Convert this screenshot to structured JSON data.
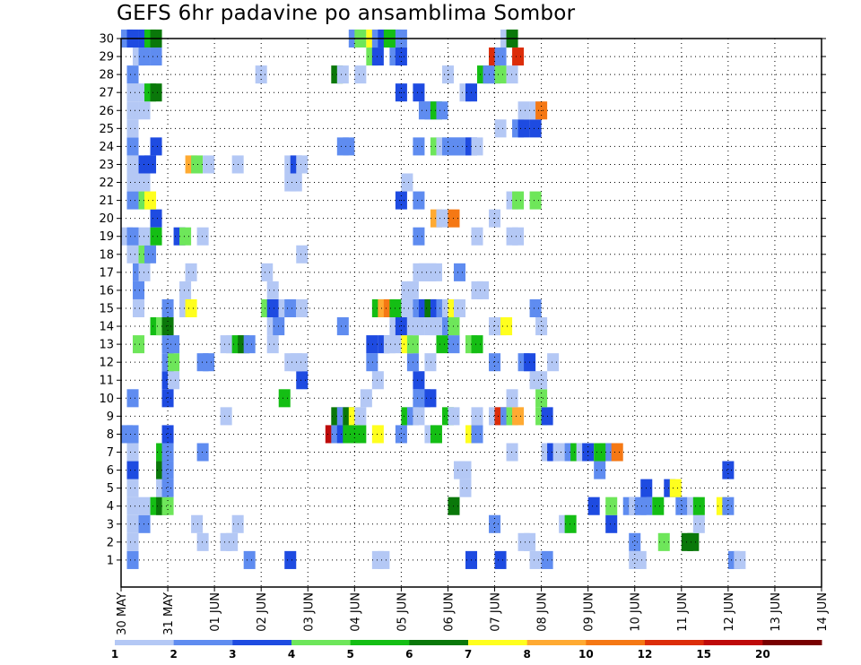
{
  "chart_data": {
    "type": "heatmap",
    "title": "GEFS 6hr padavine po ansamblima Sombor",
    "y_labels": [
      "1",
      "2",
      "3",
      "4",
      "5",
      "6",
      "7",
      "8",
      "9",
      "10",
      "11",
      "12",
      "13",
      "14",
      "15",
      "16",
      "17",
      "18",
      "19",
      "20",
      "21",
      "22",
      "23",
      "24",
      "25",
      "26",
      "27",
      "28",
      "29",
      "30"
    ],
    "x_labels": [
      "30 MAY",
      "31 MAY",
      "01 JUN",
      "02 JUN",
      "03 JUN",
      "04 JUN",
      "05 JUN",
      "06 JUN",
      "07 JUN",
      "08 JUN",
      "09 JUN",
      "10 JUN",
      "11 JUN",
      "12 JUN",
      "13 JUN",
      "14 JUN"
    ],
    "time_steps": 60,
    "grid": "dotted",
    "colorbar": {
      "labels": [
        "1",
        "2",
        "3",
        "4",
        "5",
        "6",
        "7",
        "8",
        "10",
        "12",
        "15",
        "20"
      ],
      "colors": [
        "#b4c8f5",
        "#5f8cf0",
        "#1e4be1",
        "#6ee65a",
        "#14be14",
        "#0a780a",
        "#ffff1e",
        "#ffaa32",
        "#f57814",
        "#dc2d0a",
        "#be0a0a",
        "#780000"
      ]
    },
    "rows": {
      "1": [
        [
          24,
          "c2"
        ],
        [
          44,
          "c2"
        ],
        [
          51,
          "c3"
        ],
        [
          66,
          "c1"
        ],
        [
          67,
          "c1"
        ],
        [
          82,
          "c3"
        ],
        [
          87,
          "c3"
        ],
        [
          93,
          "c1"
        ],
        [
          95,
          "c2"
        ],
        [
          110,
          "c1"
        ],
        [
          111,
          "c1"
        ],
        [
          127,
          "c2"
        ],
        [
          128,
          "c1"
        ]
      ],
      "2": [
        [
          24,
          "c1"
        ],
        [
          36,
          "c1"
        ],
        [
          40,
          "c1"
        ],
        [
          41,
          "c1"
        ],
        [
          91,
          "c1"
        ],
        [
          92,
          "c1"
        ],
        [
          110,
          "c2"
        ],
        [
          115,
          "c4"
        ],
        [
          119,
          "c6"
        ],
        [
          120,
          "c6"
        ]
      ],
      "3": [
        [
          24,
          "c1"
        ],
        [
          26,
          "c2"
        ],
        [
          35,
          "c1"
        ],
        [
          42,
          "c1"
        ],
        [
          86,
          "c2"
        ],
        [
          98,
          "c1"
        ],
        [
          99,
          "c5"
        ],
        [
          106,
          "c3"
        ],
        [
          121,
          "c1"
        ]
      ],
      "4": [
        [
          24,
          "c1"
        ],
        [
          26,
          "c1"
        ],
        [
          28,
          "c5"
        ],
        [
          29,
          "c6"
        ],
        [
          30,
          "c4"
        ],
        [
          79,
          "c6"
        ],
        [
          103,
          "c3"
        ],
        [
          106,
          "c4"
        ],
        [
          109,
          "c2"
        ],
        [
          110,
          "c1"
        ],
        [
          111,
          "c2"
        ],
        [
          112,
          "c2"
        ],
        [
          114,
          "c5"
        ],
        [
          118,
          "c2"
        ],
        [
          120,
          "c1"
        ],
        [
          121,
          "c5"
        ],
        [
          125,
          "c7"
        ],
        [
          126,
          "c2"
        ]
      ],
      "5": [
        [
          24,
          "c1"
        ],
        [
          29,
          "c1"
        ],
        [
          30,
          "c2"
        ],
        [
          81,
          "c1"
        ],
        [
          112,
          "c3"
        ],
        [
          116,
          "c3"
        ],
        [
          117,
          "c7"
        ]
      ],
      "6": [
        [
          24,
          "c3"
        ],
        [
          29,
          "c6"
        ],
        [
          30,
          "c2"
        ],
        [
          80,
          "c1"
        ],
        [
          81,
          "c1"
        ],
        [
          104,
          "c2"
        ],
        [
          126,
          "c3"
        ]
      ],
      "7": [
        [
          24,
          "c1"
        ],
        [
          29,
          "c5"
        ],
        [
          30,
          "c2"
        ],
        [
          36,
          "c2"
        ],
        [
          89,
          "c1"
        ],
        [
          95,
          "c1"
        ],
        [
          96,
          "c3"
        ],
        [
          97,
          "c1"
        ],
        [
          98,
          "c1"
        ],
        [
          99,
          "c2"
        ],
        [
          100,
          "c5"
        ],
        [
          101,
          "c1"
        ],
        [
          102,
          "c3"
        ],
        [
          104,
          "c5"
        ],
        [
          105,
          "c5"
        ],
        [
          106,
          "c2"
        ],
        [
          107,
          "c9"
        ]
      ],
      "8": [
        [
          23,
          "c2"
        ],
        [
          24,
          "c2"
        ],
        [
          30,
          "c3"
        ],
        [
          58,
          "c11"
        ],
        [
          59,
          "c2"
        ],
        [
          60,
          "c3"
        ],
        [
          61,
          "c5"
        ],
        [
          62,
          "c5"
        ],
        [
          63,
          "c5"
        ],
        [
          66,
          "c7"
        ],
        [
          70,
          "c2"
        ],
        [
          75,
          "c1"
        ],
        [
          76,
          "c5"
        ],
        [
          82,
          "c7"
        ],
        [
          83,
          "c2"
        ]
      ],
      "9": [
        [
          40,
          "c1"
        ],
        [
          59,
          "c6"
        ],
        [
          60,
          "c2"
        ],
        [
          61,
          "c6"
        ],
        [
          62,
          "c7"
        ],
        [
          63,
          "c1"
        ],
        [
          71,
          "c5"
        ],
        [
          72,
          "c2"
        ],
        [
          73,
          "c1"
        ],
        [
          78,
          "c5"
        ],
        [
          79,
          "c1"
        ],
        [
          83,
          "c1"
        ],
        [
          86,
          "c1"
        ],
        [
          87,
          "c10"
        ],
        [
          88,
          "c2"
        ],
        [
          89,
          "c4"
        ],
        [
          90,
          "c8"
        ],
        [
          94,
          "c4"
        ],
        [
          95,
          "c3"
        ]
      ],
      "10": [
        [
          24,
          "c2"
        ],
        [
          30,
          "c3"
        ],
        [
          50,
          "c5"
        ],
        [
          64,
          "c1"
        ],
        [
          73,
          "c2"
        ],
        [
          74,
          "c2"
        ],
        [
          75,
          "c3"
        ],
        [
          89,
          "c1"
        ],
        [
          94,
          "c4"
        ]
      ],
      "11": [
        [
          30,
          "c3"
        ],
        [
          31,
          "c1"
        ],
        [
          53,
          "c3"
        ],
        [
          66,
          "c1"
        ],
        [
          73,
          "c3"
        ],
        [
          93,
          "c1"
        ],
        [
          94,
          "c1"
        ]
      ],
      "12": [
        [
          30,
          "c2"
        ],
        [
          31,
          "c4"
        ],
        [
          36,
          "c2"
        ],
        [
          37,
          "c2"
        ],
        [
          51,
          "c1"
        ],
        [
          52,
          "c1"
        ],
        [
          53,
          "c1"
        ],
        [
          65,
          "c2"
        ],
        [
          72,
          "c2"
        ],
        [
          75,
          "c1"
        ],
        [
          86,
          "c2"
        ],
        [
          91,
          "c2"
        ],
        [
          92,
          "c3"
        ],
        [
          96,
          "c1"
        ]
      ],
      "13": [
        [
          25,
          "c4"
        ],
        [
          30,
          "c2"
        ],
        [
          31,
          "c2"
        ],
        [
          40,
          "c1"
        ],
        [
          41,
          "c1"
        ],
        [
          42,
          "c5"
        ],
        [
          43,
          "c6"
        ],
        [
          44,
          "c2"
        ],
        [
          48,
          "c1"
        ],
        [
          65,
          "c3"
        ],
        [
          67,
          "c3"
        ],
        [
          68,
          "c1"
        ],
        [
          69,
          "c1"
        ],
        [
          71,
          "c7"
        ],
        [
          72,
          "c4"
        ],
        [
          77,
          "c5"
        ],
        [
          79,
          "c2"
        ],
        [
          82,
          "c4"
        ],
        [
          83,
          "c5"
        ]
      ],
      "14": [
        [
          28,
          "c5"
        ],
        [
          29,
          "c4"
        ],
        [
          30,
          "c6"
        ],
        [
          48,
          "c1"
        ],
        [
          49,
          "c2"
        ],
        [
          60,
          "c2"
        ],
        [
          69,
          "c1"
        ],
        [
          70,
          "c3"
        ],
        [
          72,
          "c1"
        ],
        [
          73,
          "c1"
        ],
        [
          75,
          "c1"
        ],
        [
          76,
          "c1"
        ],
        [
          78,
          "c2"
        ],
        [
          79,
          "c4"
        ],
        [
          86,
          "c1"
        ],
        [
          87,
          "c1"
        ],
        [
          88,
          "c7"
        ],
        [
          94,
          "c1"
        ]
      ],
      "15": [
        [
          25,
          "c1"
        ],
        [
          30,
          "c2"
        ],
        [
          33,
          "c1"
        ],
        [
          34,
          "c7"
        ],
        [
          47,
          "c4"
        ],
        [
          48,
          "c3"
        ],
        [
          50,
          "c1"
        ],
        [
          51,
          "c2"
        ],
        [
          53,
          "c1"
        ],
        [
          66,
          "c5"
        ],
        [
          67,
          "c8"
        ],
        [
          68,
          "c9"
        ],
        [
          69,
          "c5"
        ],
        [
          71,
          "c1"
        ],
        [
          72,
          "c1"
        ],
        [
          73,
          "c2"
        ],
        [
          74,
          "c3"
        ],
        [
          75,
          "c6"
        ],
        [
          76,
          "c3"
        ],
        [
          77,
          "c2"
        ],
        [
          78,
          "c1"
        ],
        [
          79,
          "c7"
        ],
        [
          80,
          "c1"
        ],
        [
          93,
          "c2"
        ]
      ],
      "16": [
        [
          25,
          "c2"
        ],
        [
          33,
          "c1"
        ],
        [
          48,
          "c1"
        ],
        [
          71,
          "c1"
        ],
        [
          72,
          "c1"
        ],
        [
          83,
          "c1"
        ],
        [
          84,
          "c1"
        ]
      ],
      "17": [
        [
          25,
          "c2"
        ],
        [
          26,
          "c1"
        ],
        [
          34,
          "c1"
        ],
        [
          47,
          "c1"
        ],
        [
          73,
          "c1"
        ],
        [
          74,
          "c1"
        ],
        [
          75,
          "c1"
        ],
        [
          76,
          "c1"
        ],
        [
          80,
          "c2"
        ]
      ],
      "18": [
        [
          24,
          "c1"
        ],
        [
          25,
          "c1"
        ],
        [
          26,
          "c4"
        ],
        [
          27,
          "c2"
        ],
        [
          53,
          "c1"
        ]
      ],
      "19": [
        [
          23,
          "c1"
        ],
        [
          24,
          "c2"
        ],
        [
          26,
          "c1"
        ],
        [
          28,
          "c5"
        ],
        [
          32,
          "c3"
        ],
        [
          33,
          "c4"
        ],
        [
          36,
          "c1"
        ],
        [
          73,
          "c2"
        ],
        [
          83,
          "c1"
        ],
        [
          89,
          "c1"
        ],
        [
          90,
          "c1"
        ]
      ],
      "20": [
        [
          28,
          "c3"
        ],
        [
          76,
          "c8"
        ],
        [
          77,
          "c1"
        ],
        [
          79,
          "c9"
        ],
        [
          86,
          "c1"
        ]
      ],
      "21": [
        [
          24,
          "c2"
        ],
        [
          26,
          "c4"
        ],
        [
          27,
          "c7"
        ],
        [
          70,
          "c3"
        ],
        [
          73,
          "c2"
        ],
        [
          89,
          "c1"
        ],
        [
          90,
          "c4"
        ],
        [
          93,
          "c4"
        ]
      ],
      "22": [
        [
          24,
          "c1"
        ],
        [
          26,
          "c1"
        ],
        [
          51,
          "c1"
        ],
        [
          52,
          "c1"
        ],
        [
          71,
          "c1"
        ]
      ],
      "23": [
        [
          24,
          "c1"
        ],
        [
          26,
          "c3"
        ],
        [
          27,
          "c3"
        ],
        [
          34,
          "c8"
        ],
        [
          35,
          "c4"
        ],
        [
          37,
          "c1"
        ],
        [
          42,
          "c1"
        ],
        [
          51,
          "c1"
        ],
        [
          52,
          "c3"
        ],
        [
          53,
          "c1"
        ]
      ],
      "24": [
        [
          24,
          "c2"
        ],
        [
          28,
          "c3"
        ],
        [
          60,
          "c2"
        ],
        [
          61,
          "c2"
        ],
        [
          73,
          "c2"
        ],
        [
          76,
          "c4"
        ],
        [
          77,
          "c1"
        ],
        [
          78,
          "c2"
        ],
        [
          79,
          "c2"
        ],
        [
          80,
          "c2"
        ],
        [
          81,
          "c2"
        ],
        [
          82,
          "c3"
        ],
        [
          83,
          "c1"
        ]
      ],
      "25": [
        [
          24,
          "c1"
        ],
        [
          87,
          "c1"
        ],
        [
          90,
          "c2"
        ],
        [
          91,
          "c3"
        ],
        [
          93,
          "c3"
        ]
      ],
      "26": [
        [
          24,
          "c1"
        ],
        [
          26,
          "c1"
        ],
        [
          74,
          "c2"
        ],
        [
          75,
          "c2"
        ],
        [
          76,
          "c5"
        ],
        [
          77,
          "c2"
        ],
        [
          91,
          "c1"
        ],
        [
          93,
          "c1"
        ],
        [
          94,
          "c9"
        ]
      ],
      "27": [
        [
          24,
          "c1"
        ],
        [
          26,
          "c1"
        ],
        [
          27,
          "c5"
        ],
        [
          28,
          "c6"
        ],
        [
          70,
          "c3"
        ],
        [
          73,
          "c3"
        ],
        [
          81,
          "c1"
        ],
        [
          82,
          "c3"
        ]
      ],
      "28": [
        [
          24,
          "c2"
        ],
        [
          46,
          "c1"
        ],
        [
          59,
          "c6"
        ],
        [
          60,
          "c1"
        ],
        [
          63,
          "c1"
        ],
        [
          78,
          "c1"
        ],
        [
          84,
          "c5"
        ],
        [
          85,
          "c2"
        ],
        [
          86,
          "c2"
        ],
        [
          87,
          "c4"
        ],
        [
          89,
          "c1"
        ]
      ],
      "29": [
        [
          25,
          "c1"
        ],
        [
          26,
          "c2"
        ],
        [
          28,
          "c2"
        ],
        [
          65,
          "c4"
        ],
        [
          66,
          "c3"
        ],
        [
          69,
          "c2"
        ],
        [
          70,
          "c3"
        ],
        [
          86,
          "c10"
        ],
        [
          87,
          "c2"
        ],
        [
          90,
          "c10"
        ]
      ],
      "30": [
        [
          23,
          "c2"
        ],
        [
          24,
          "c3"
        ],
        [
          26,
          "c3"
        ],
        [
          27,
          "c5"
        ],
        [
          28,
          "c6"
        ],
        [
          62,
          "c2"
        ],
        [
          63,
          "c4"
        ],
        [
          65,
          "c7"
        ],
        [
          66,
          "c2"
        ],
        [
          67,
          "c3"
        ],
        [
          68,
          "c5"
        ],
        [
          69,
          "c5"
        ],
        [
          70,
          "c2"
        ],
        [
          88,
          "c1"
        ],
        [
          89,
          "c6"
        ]
      ]
    }
  }
}
